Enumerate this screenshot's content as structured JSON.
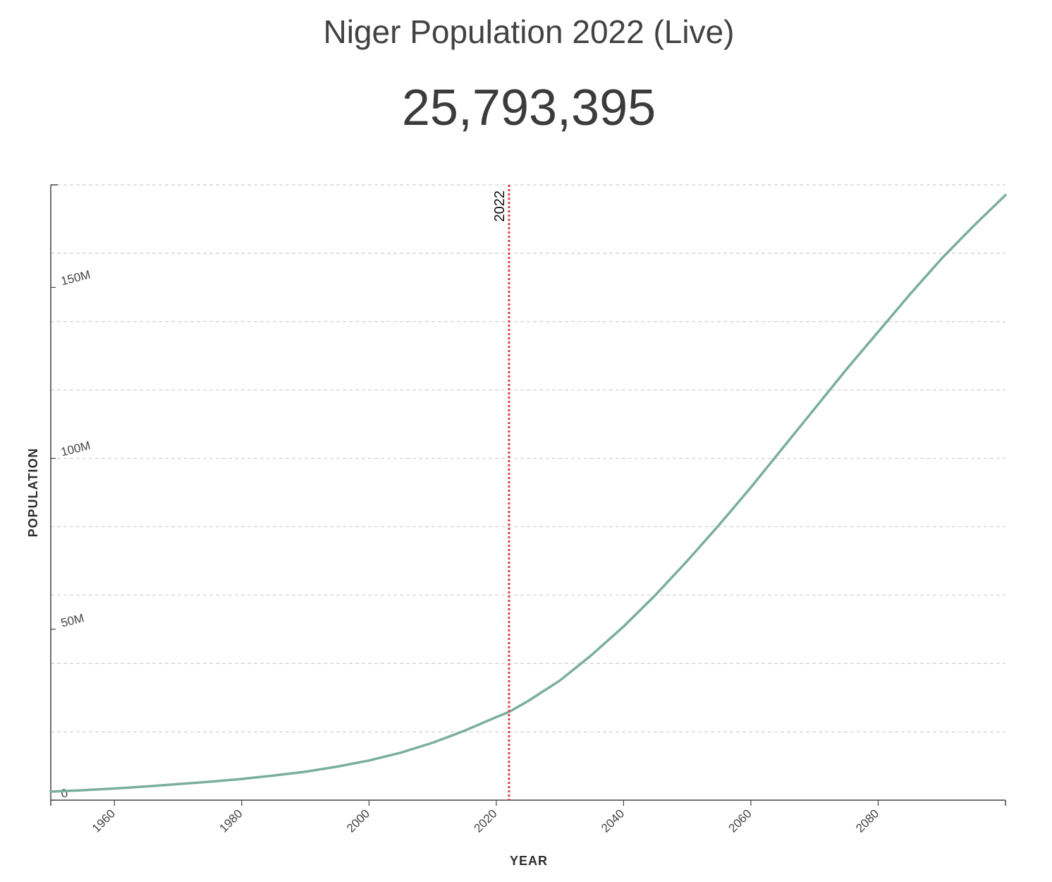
{
  "header": {
    "title": "Niger Population 2022 (Live)",
    "live_population": "25,793,395"
  },
  "chart_data": {
    "type": "line",
    "title": "Niger Population 2022 (Live)",
    "xlabel": "YEAR",
    "ylabel": "POPULATION",
    "xlim": [
      1950,
      2100
    ],
    "ylim": [
      0,
      180000000
    ],
    "x_ticks": [
      1960,
      1980,
      2000,
      2020,
      2040,
      2060,
      2080
    ],
    "y_ticks": [
      0,
      50000000,
      100000000,
      150000000
    ],
    "y_tick_labels": [
      "0",
      "50M",
      "100M",
      "150M"
    ],
    "grid": "horizontal dashed",
    "line_color": "#7aaf9c",
    "marker": {
      "x": 2022,
      "label": "2022",
      "color": "#e24040"
    },
    "series": [
      {
        "x": [
          1950,
          1955,
          1960,
          1965,
          1970,
          1975,
          1980,
          1985,
          1990,
          1995,
          2000,
          2005,
          2010,
          2015,
          2020,
          2022,
          2025,
          2030,
          2035,
          2040,
          2045,
          2050,
          2055,
          2060,
          2065,
          2070,
          2075,
          2080,
          2085,
          2090,
          2095,
          2100
        ],
        "values": [
          2500000,
          2900000,
          3400000,
          4000000,
          4700000,
          5400000,
          6200000,
          7200000,
          8300000,
          9800000,
          11600000,
          13900000,
          16800000,
          20300000,
          24300000,
          25800000,
          29000000,
          35000000,
          42500000,
          50800000,
          60000000,
          70000000,
          80500000,
          91500000,
          103000000,
          114500000,
          126000000,
          137000000,
          148000000,
          158500000,
          168000000,
          177000000
        ]
      }
    ]
  }
}
